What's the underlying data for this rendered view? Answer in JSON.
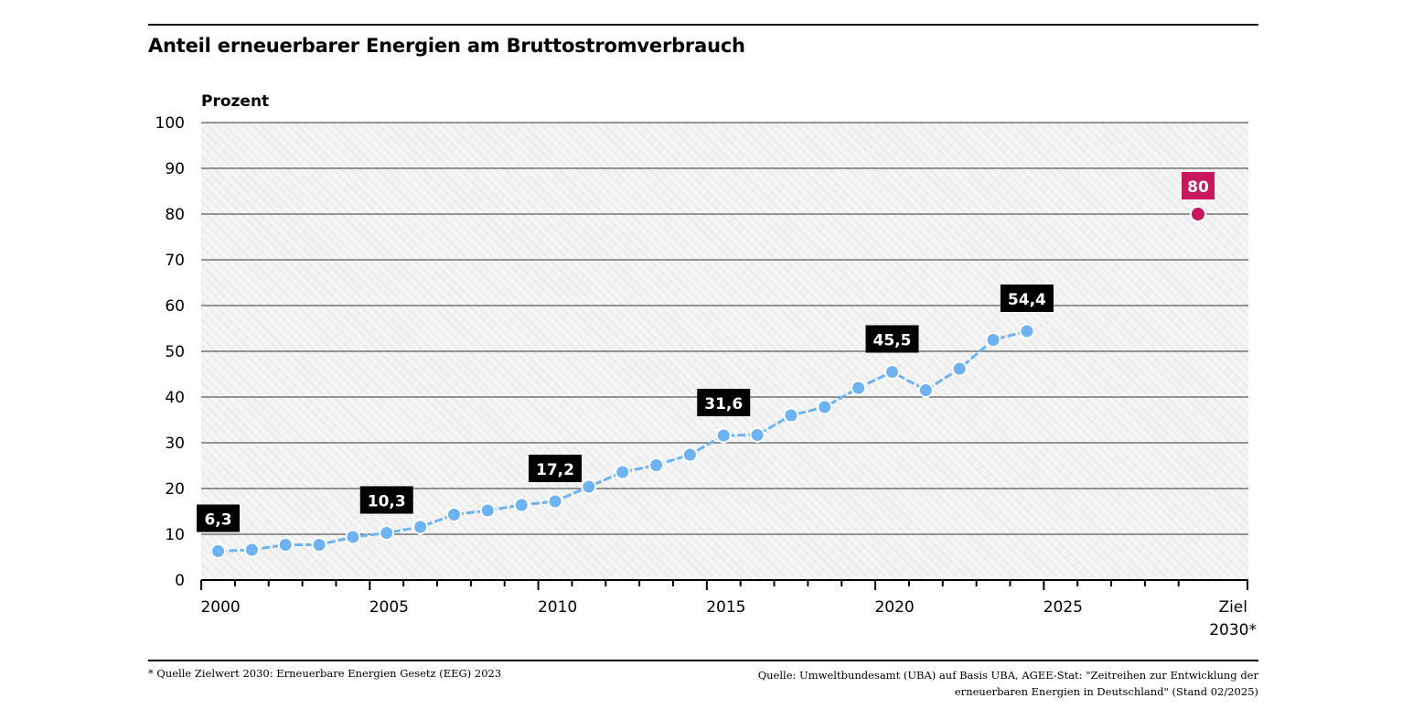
{
  "title": "Anteil erneuerbarer Energien am Bruttostromverbrauch",
  "footnote": "* Quelle Zielwert 2030: Erneuerbare Energien Gesetz (EEG) 2023",
  "source_line1": "Quelle: Umweltbundesamt (UBA) auf Basis UBA, AGEE-Stat: \"Zeitreihen zur Entwicklung der",
  "source_line2": "erneuerbaren Energien in Deutschland\" (Stand 02/2025)",
  "chart_data": {
    "type": "line",
    "ylabel": "Prozent",
    "ylim": [
      0,
      100
    ],
    "yticks": [
      0,
      10,
      20,
      30,
      40,
      50,
      60,
      70,
      80,
      90,
      100
    ],
    "xticks": [
      "2000",
      "2005",
      "2010",
      "2015",
      "2020",
      "2025"
    ],
    "target_tick_label": [
      "Ziel",
      "2030*"
    ],
    "grid": true,
    "series": [
      {
        "color": "#6db3f2",
        "x": [
          2000,
          2001,
          2002,
          2003,
          2004,
          2005,
          2006,
          2007,
          2008,
          2009,
          2010,
          2011,
          2012,
          2013,
          2014,
          2015,
          2016,
          2017,
          2018,
          2019,
          2020,
          2021,
          2022,
          2023,
          2024
        ],
        "values": [
          6.3,
          6.6,
          7.7,
          7.7,
          9.4,
          10.3,
          11.6,
          14.3,
          15.2,
          16.4,
          17.2,
          20.4,
          23.6,
          25.1,
          27.4,
          31.6,
          31.7,
          36.0,
          37.8,
          42.0,
          45.5,
          41.5,
          46.2,
          52.5,
          54.4
        ]
      }
    ],
    "labels": [
      {
        "x": 2000,
        "value": 6.3,
        "text": "6,3"
      },
      {
        "x": 2005,
        "value": 10.3,
        "text": "10,3"
      },
      {
        "x": 2010,
        "value": 17.2,
        "text": "17,2"
      },
      {
        "x": 2015,
        "value": 31.6,
        "text": "31,6"
      },
      {
        "x": 2020,
        "value": 45.5,
        "text": "45,5"
      },
      {
        "x": 2024,
        "value": 54.4,
        "text": "54,4"
      }
    ],
    "target": {
      "label": "Ziel 2030*",
      "value": 80,
      "text": "80",
      "color": "#c8175c"
    }
  }
}
